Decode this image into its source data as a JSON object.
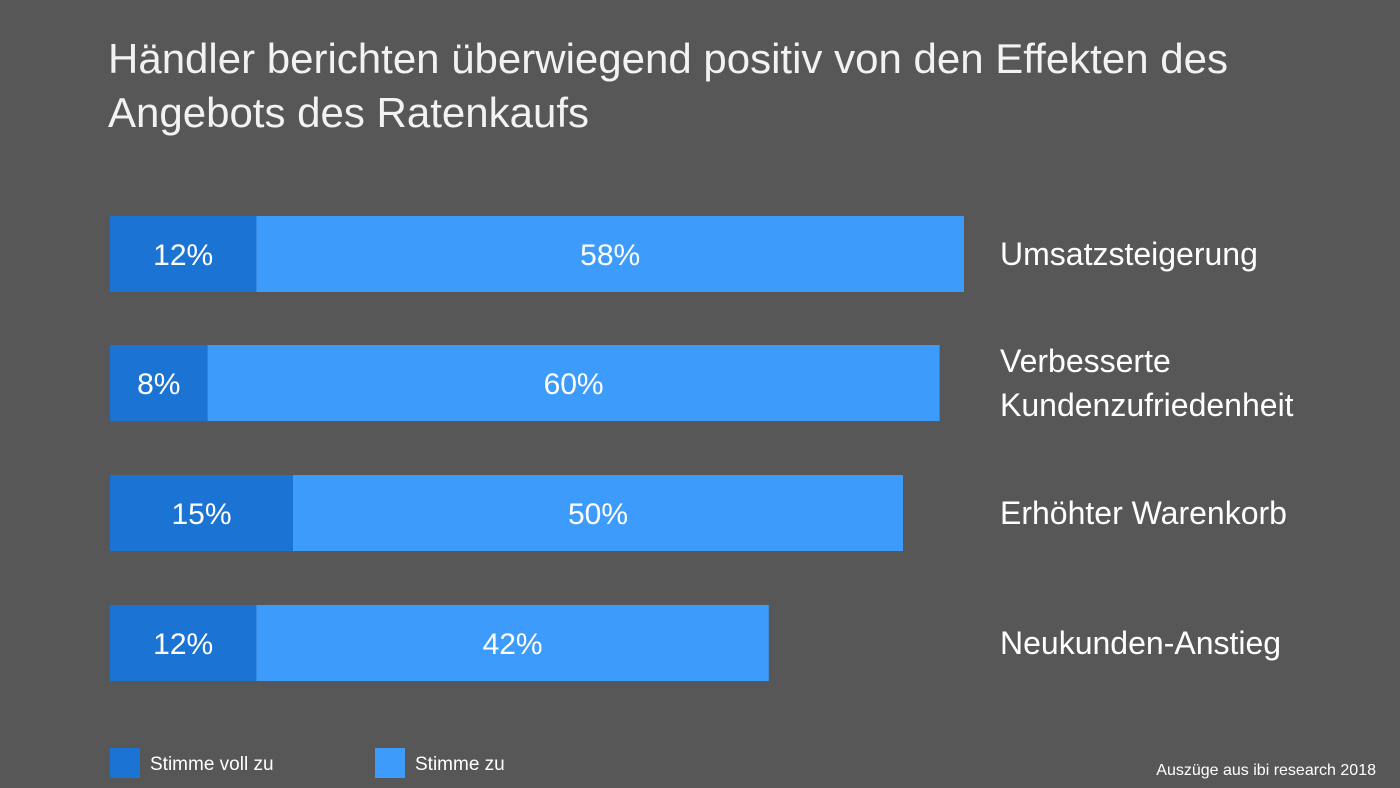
{
  "chart_data": {
    "type": "bar",
    "orientation": "horizontal",
    "stacked": true,
    "title": "Händler berichten überwiegend positiv von den Effekten des Angebots des Ratenkaufs",
    "categories": [
      [
        "Umsatzsteigerung"
      ],
      [
        "Verbesserte",
        "Kundenzufriedenheit"
      ],
      [
        "Erhöhter Warenkorb"
      ],
      [
        "Neukunden-Anstieg"
      ]
    ],
    "series": [
      {
        "name": "Stimme voll zu",
        "color": "#1b73d4",
        "values": [
          12,
          8,
          15,
          12
        ],
        "labels": [
          "12%",
          "8%",
          "15%",
          "12%"
        ]
      },
      {
        "name": "Stimme zu",
        "color": "#3d9cfb",
        "values": [
          58,
          60,
          50,
          42
        ],
        "labels": [
          "58%",
          "60%",
          "50%",
          "42%"
        ]
      }
    ],
    "unit": "%",
    "legend_position": "bottom-left",
    "grid": false
  },
  "source": "Auszüge aus ibi research 2018",
  "colors": {
    "background": "#575757",
    "text": "#ffffff"
  }
}
